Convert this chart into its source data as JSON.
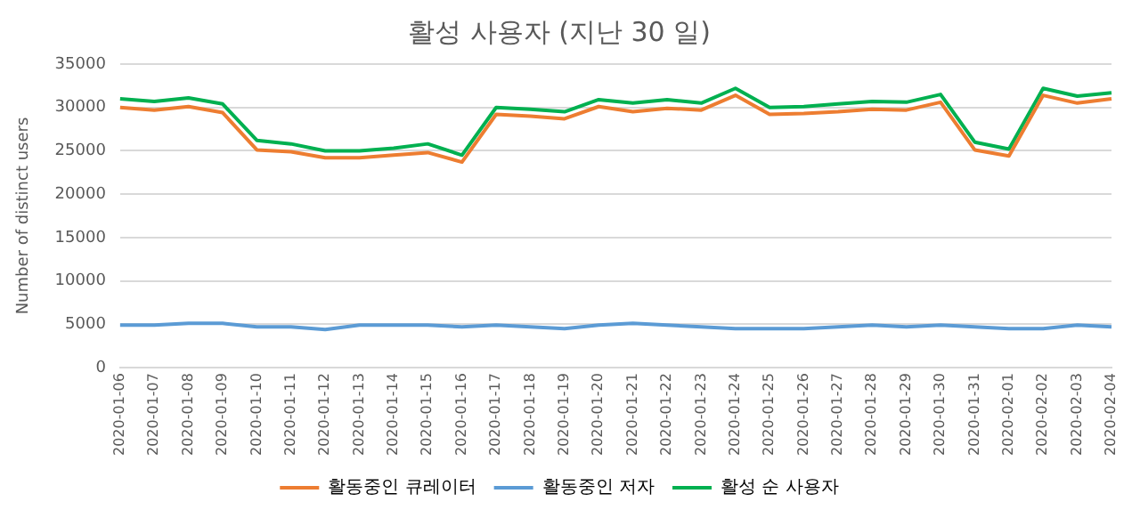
{
  "chart_data": {
    "type": "line",
    "title": "활성 사용자 (지난 30 일)",
    "ylabel": "Number of distinct users",
    "categories": [
      "2020-01-06",
      "2020-01-07",
      "2020-01-08",
      "2020-01-09",
      "2020-01-10",
      "2020-01-11",
      "2020-01-12",
      "2020-01-13",
      "2020-01-14",
      "2020-01-15",
      "2020-01-16",
      "2020-01-17",
      "2020-01-18",
      "2020-01-19",
      "2020-01-20",
      "2020-01-21",
      "2020-01-22",
      "2020-01-23",
      "2020-01-24",
      "2020-01-25",
      "2020-01-26",
      "2020-01-27",
      "2020-01-28",
      "2020-01-29",
      "2020-01-30",
      "2020-01-31",
      "2020-02-01",
      "2020-02-02",
      "2020-02-03",
      "2020-02-04"
    ],
    "series": [
      {
        "name": "활동중인 큐레이터",
        "color": "#ed7d31",
        "values": [
          30000,
          29700,
          30100,
          29400,
          25100,
          24900,
          24200,
          24200,
          24500,
          24800,
          23700,
          29200,
          29000,
          28700,
          30100,
          29500,
          29900,
          29700,
          31400,
          29200,
          29300,
          29500,
          29800,
          29700,
          30600,
          25100,
          24400,
          31400,
          30500,
          31000
        ]
      },
      {
        "name": "활동중인 저자",
        "color": "#5b9bd5",
        "values": [
          4900,
          4900,
          5100,
          5100,
          4700,
          4700,
          4400,
          4900,
          4900,
          4900,
          4700,
          4900,
          4700,
          4500,
          4900,
          5100,
          4900,
          4700,
          4500,
          4500,
          4500,
          4700,
          4900,
          4700,
          4900,
          4700,
          4500,
          4500,
          4900,
          4700
        ]
      },
      {
        "name": "활성 순 사용자",
        "color": "#00b050",
        "values": [
          31000,
          30700,
          31100,
          30400,
          26200,
          25800,
          25000,
          25000,
          25300,
          25800,
          24500,
          30000,
          29800,
          29500,
          30900,
          30500,
          30900,
          30500,
          32200,
          30000,
          30100,
          30400,
          30700,
          30600,
          31500,
          26000,
          25200,
          32200,
          31300,
          31700
        ]
      }
    ],
    "ylim": [
      0,
      35000
    ],
    "yticks": [
      0,
      5000,
      10000,
      15000,
      20000,
      25000,
      30000,
      35000
    ],
    "grid": "y",
    "legend": "bottom",
    "marker": "none",
    "line_style": "solid"
  }
}
